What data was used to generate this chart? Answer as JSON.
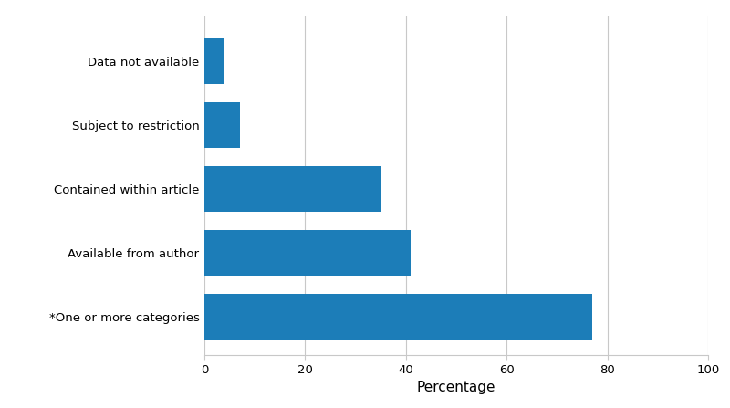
{
  "categories": [
    "*One or more categories",
    "Available from author",
    "Contained within article",
    "Subject to restriction",
    "Data not available"
  ],
  "values": [
    77,
    41,
    35,
    7,
    4
  ],
  "bar_color": "#1c7db8",
  "xlabel": "Percentage",
  "xlim": [
    0,
    100
  ],
  "xticks": [
    0,
    20,
    40,
    60,
    80,
    100
  ],
  "background_color": "#ffffff",
  "grid_color": "#c8c8c8",
  "bar_height": 0.72,
  "label_fontsize": 9.5,
  "xlabel_fontsize": 11
}
